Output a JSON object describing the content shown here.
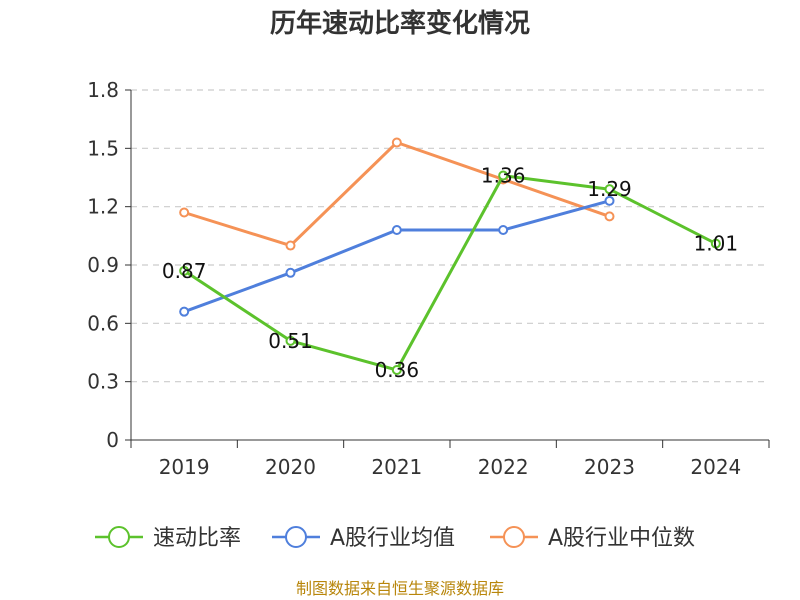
{
  "chart_data": {
    "type": "line",
    "title": "历年速动比率变化情况",
    "categories": [
      "2019",
      "2020",
      "2021",
      "2022",
      "2023",
      "2024"
    ],
    "ylim": [
      0,
      1.8
    ],
    "yticks": [
      "0",
      "0.3",
      "0.6",
      "0.9",
      "1.2",
      "1.5",
      "1.8"
    ],
    "grid": true,
    "legend_position": "bottom",
    "series": [
      {
        "name": "速动比率",
        "color": "#5cc22c",
        "values": [
          0.87,
          0.51,
          0.36,
          1.36,
          1.29,
          1.01
        ],
        "labels": [
          "0.87",
          "0.51",
          "0.36",
          "1.36",
          "1.29",
          "1.01"
        ]
      },
      {
        "name": "A股行业均值",
        "color": "#4f7fdc",
        "values": [
          0.66,
          0.86,
          1.08,
          1.08,
          1.23,
          null
        ]
      },
      {
        "name": "A股行业中位数",
        "color": "#f59256",
        "values": [
          1.17,
          1.0,
          1.53,
          1.34,
          1.15,
          null
        ]
      }
    ]
  },
  "source": "制图数据来自恒生聚源数据库"
}
